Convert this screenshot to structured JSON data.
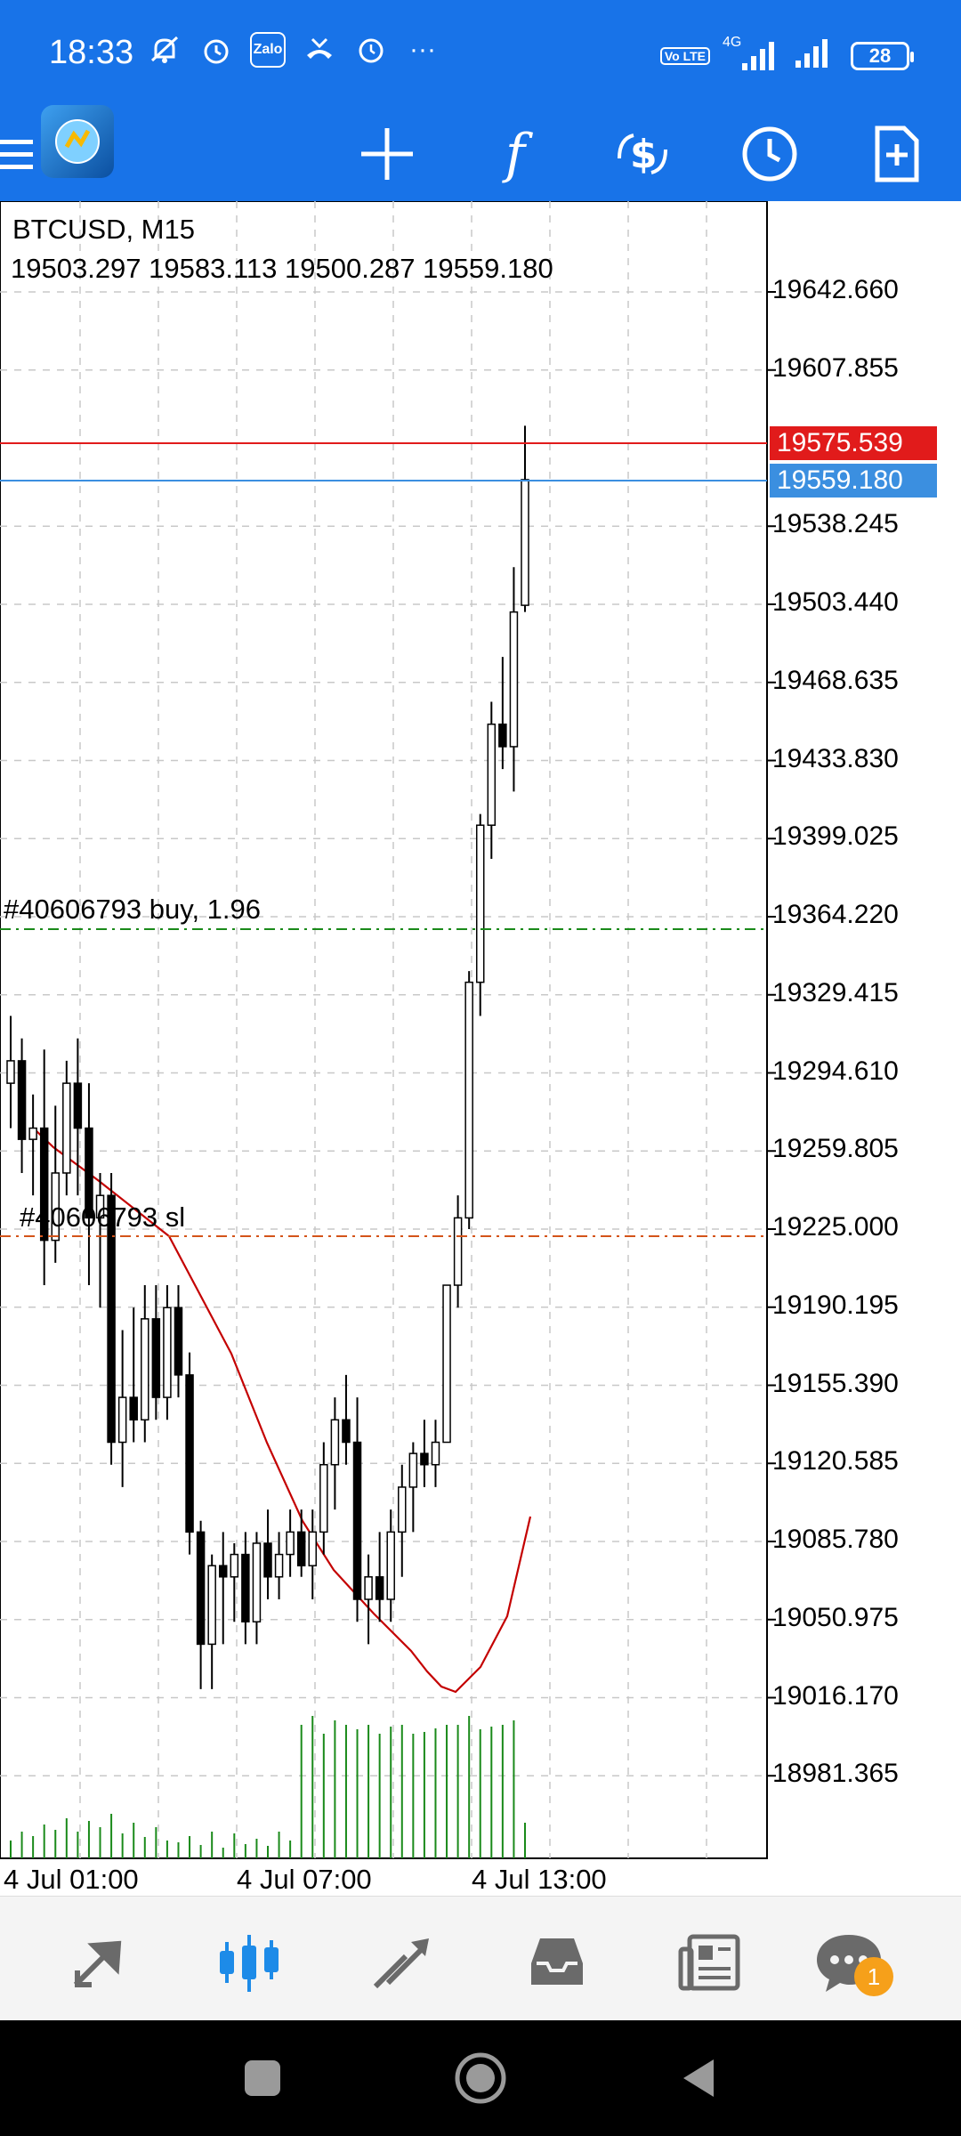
{
  "status_bar": {
    "time": "18:33",
    "zalo_label": "Zalo",
    "volte_label": "Vo LTE",
    "network_label": "4G",
    "battery": "28",
    "more": "···"
  },
  "toolbar": {
    "icons": [
      "menu-icon",
      "crosshair-icon",
      "indicators-icon",
      "trade-icon",
      "period-icon",
      "new-order-icon"
    ]
  },
  "chart": {
    "symbol_timeframe": "BTCUSD, M15",
    "ohlc": "19503.297 19583.113 19500.287 19559.180",
    "ask_price": "19575.539",
    "bid_price": "19559.180",
    "price_scale": [
      "19642.660",
      "19607.855",
      "19538.245",
      "19503.440",
      "19468.635",
      "19433.830",
      "19399.025",
      "19364.220",
      "19329.415",
      "19294.610",
      "19259.805",
      "19225.000",
      "19190.195",
      "19155.390",
      "19120.585",
      "19085.780",
      "19050.975",
      "19016.170",
      "18981.365"
    ],
    "time_scale": [
      "4 Jul 01:00",
      "4 Jul 07:00",
      "4 Jul 13:00"
    ],
    "order_buy_label": "#40606793 buy, 1.96",
    "order_sl_label": "#40606793 sl",
    "colors": {
      "ask_line": "#e11b1b",
      "bid_line": "#3b8fe0",
      "buy_line": "#1a8a1a",
      "sl_line": "#d4541a",
      "ma_line": "#c40000",
      "volume": "#1a8a1a"
    }
  },
  "bottom_nav": {
    "items": [
      "quotes-icon",
      "chart-icon",
      "trade-icon",
      "history-icon",
      "news-icon",
      "messages-icon"
    ],
    "messages_badge": "1"
  }
}
